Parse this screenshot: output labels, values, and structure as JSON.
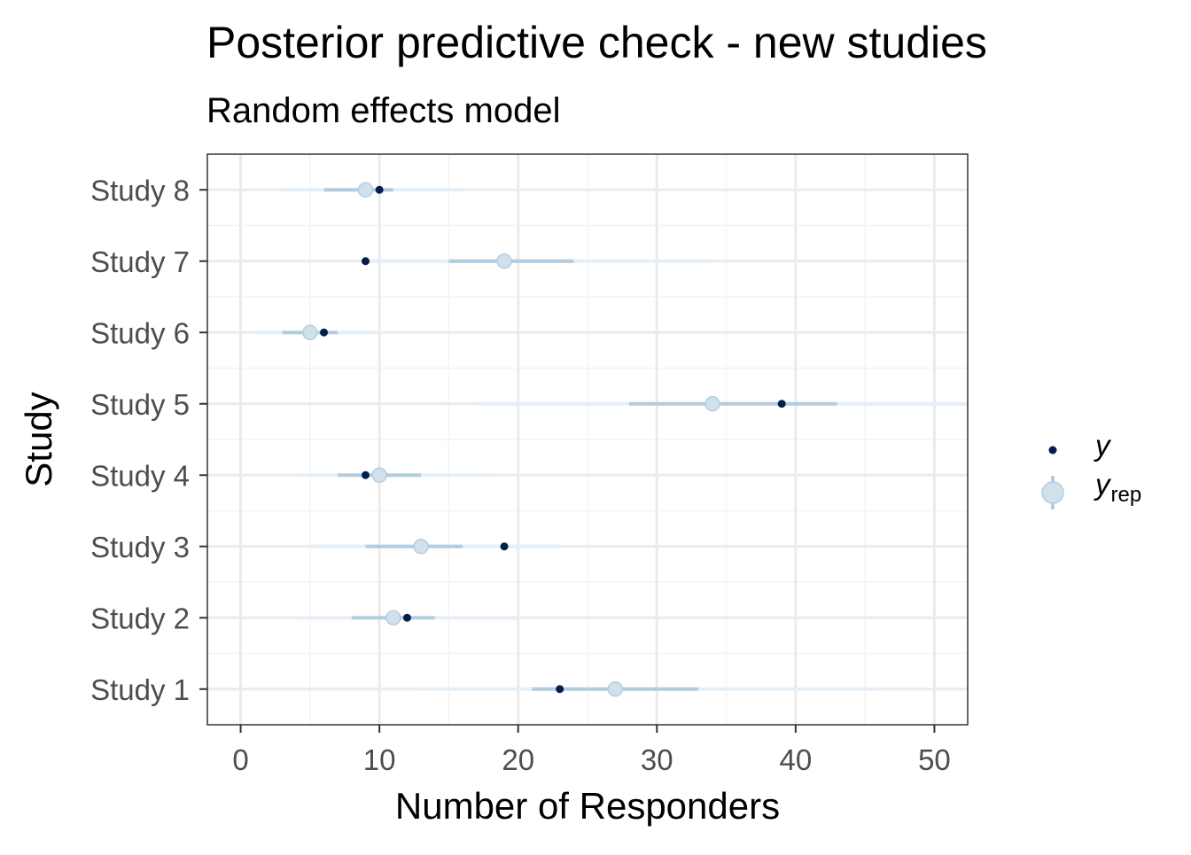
{
  "chart_data": {
    "type": "scatter",
    "title": "Posterior predictive check - new studies",
    "subtitle": "Random effects model",
    "xlabel": "Number of Responders",
    "ylabel": "Study",
    "xlim": [
      -2.4,
      52.4
    ],
    "x_ticks": [
      0,
      10,
      20,
      30,
      40,
      50
    ],
    "grid": true,
    "legend_position": "right",
    "categories": [
      "Study 1",
      "Study 2",
      "Study 3",
      "Study 4",
      "Study 5",
      "Study 6",
      "Study 7",
      "Study 8"
    ],
    "series": [
      {
        "name": "y",
        "values": [
          23,
          12,
          19,
          9,
          39,
          6,
          9,
          10
        ]
      },
      {
        "name": "y_rep",
        "values": [
          27,
          11,
          13,
          10,
          34,
          5,
          19,
          9
        ],
        "inner_interval": [
          [
            21,
            33
          ],
          [
            8,
            14
          ],
          [
            9,
            16
          ],
          [
            7,
            13
          ],
          [
            28,
            43
          ],
          [
            3,
            7
          ],
          [
            15,
            24
          ],
          [
            6,
            11
          ]
        ],
        "outer_interval": [
          [
            13,
            46
          ],
          [
            4,
            20
          ],
          [
            5,
            23
          ],
          [
            4,
            18
          ],
          [
            17,
            53
          ],
          [
            1,
            10
          ],
          [
            9,
            34
          ],
          [
            3,
            16
          ]
        ]
      }
    ],
    "legend": {
      "y_label": "y",
      "yrep_label": "y",
      "yrep_sub": "rep"
    },
    "colors": {
      "y_point": "#011f4b",
      "yrep_point_fill": "#d1e1ec",
      "yrep_point_stroke": "#b3cde0",
      "inner_interval": "#b3cde0",
      "outer_interval": "#e6eff7",
      "grid_major": "#ebebeb",
      "grid_minor": "#f3f3f3",
      "panel_border": "#333333"
    }
  }
}
